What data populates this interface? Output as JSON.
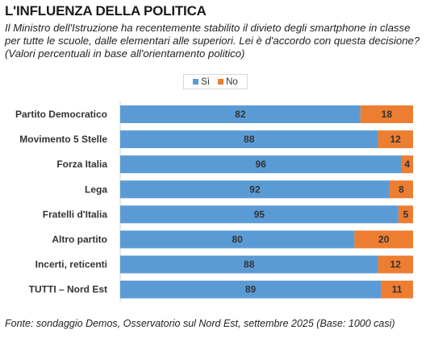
{
  "title": "L'INFLUENZA DELLA POLITICA",
  "subtitle": "Il Ministro dell'Istruzione ha recentemente stabilito il divieto degli smartphone in classe per tutte le scuole, dalle elementari alle superiori. Lei è d'accordo con questa decisione?  (Valori percentuali in base all'orientamento politico)",
  "source": "Fonte: sondaggio Demos, Osservatorio sul Nord Est, settembre 2025 (Base: 1000 casi)",
  "colors": {
    "si": "#5b9bd5",
    "no": "#ed7d31"
  },
  "chart_data": {
    "type": "bar",
    "orientation": "horizontal",
    "stacked": true,
    "legend_position": "top",
    "categories": [
      "Partito Democratico",
      "Movimento 5 Stelle",
      "Forza Italia",
      "Lega",
      "Fratelli d'Italia",
      "Altro partito",
      "Incerti, reticenti",
      "TUTTI – Nord Est"
    ],
    "series": [
      {
        "name": "Sì",
        "values": [
          82,
          88,
          96,
          92,
          95,
          80,
          88,
          89
        ]
      },
      {
        "name": "No",
        "values": [
          18,
          12,
          4,
          8,
          5,
          20,
          12,
          11
        ]
      }
    ],
    "xlim": [
      0,
      100
    ]
  }
}
